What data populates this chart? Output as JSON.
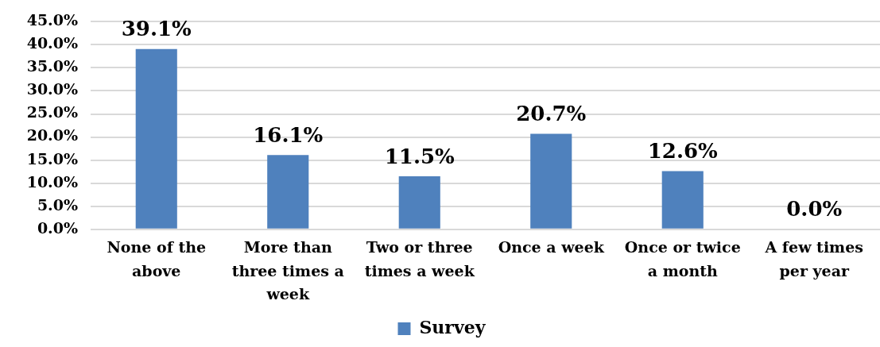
{
  "chart_data": {
    "type": "bar",
    "categories": [
      "None of the above",
      "More than three times a week",
      "Two or three times a week",
      "Once a week",
      "Once or twice a month",
      "A few times per year"
    ],
    "series": [
      {
        "name": "Survey",
        "color": "#4f81bd",
        "values": [
          39.1,
          16.1,
          11.5,
          20.7,
          12.6,
          0.0
        ],
        "value_labels": [
          "39.1%",
          "16.1%",
          "11.5%",
          "20.7%",
          "12.6%",
          "0.0%"
        ]
      }
    ],
    "ylim": [
      0,
      45
    ],
    "yticks": [
      {
        "value": 0,
        "label": "0.0%"
      },
      {
        "value": 5,
        "label": "5.0%"
      },
      {
        "value": 10,
        "label": "10.0%"
      },
      {
        "value": 15,
        "label": "15.0%"
      },
      {
        "value": 20,
        "label": "20.0%"
      },
      {
        "value": 25,
        "label": "25.0%"
      },
      {
        "value": 30,
        "label": "30.0%"
      },
      {
        "value": 35,
        "label": "35.0%"
      },
      {
        "value": 40,
        "label": "40.0%"
      },
      {
        "value": 45,
        "label": "45.0%"
      }
    ],
    "grid": "y",
    "legend": "bottom"
  }
}
